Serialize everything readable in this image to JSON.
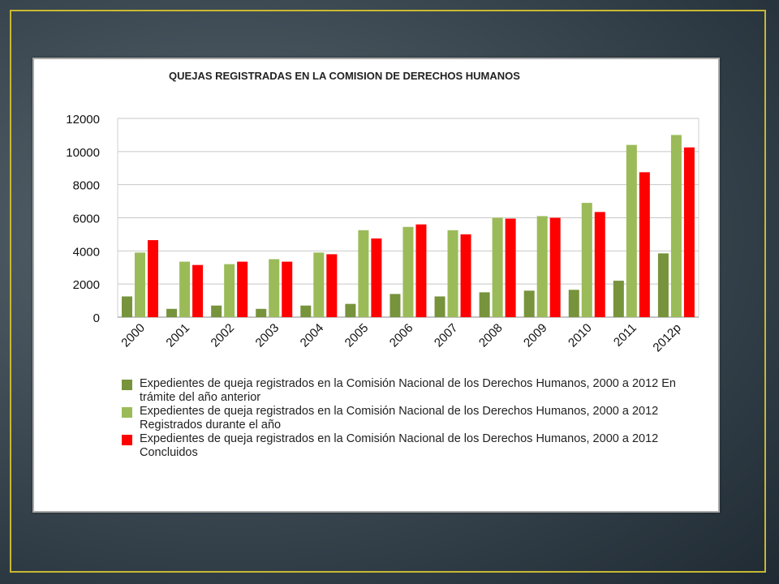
{
  "chart_data": {
    "type": "bar",
    "title": "QUEJAS REGISTRADAS EN LA COMISION DE DERECHOS HUMANOS",
    "categories": [
      "2000",
      "2001",
      "2002",
      "2003",
      "2004",
      "2005",
      "2006",
      "2007",
      "2008",
      "2009",
      "2010",
      "2011",
      "2012p"
    ],
    "ylim": [
      0,
      12000
    ],
    "yticks": [
      0,
      2000,
      4000,
      6000,
      8000,
      10000,
      12000
    ],
    "grid": true,
    "legend_position": "bottom",
    "series": [
      {
        "name": "Expedientes de queja registrados en la Comisión Nacional de los Derechos Humanos, 2000 a 2012 En trámite del año anterior",
        "color": "#77933c",
        "values": [
          1250,
          500,
          700,
          500,
          700,
          800,
          1400,
          1250,
          1500,
          1600,
          1650,
          2200,
          3850
        ]
      },
      {
        "name": "Expedientes de queja registrados en la Comisión Nacional de los Derechos Humanos, 2000 a 2012 Registrados durante el año",
        "color": "#9bbb59",
        "values": [
          3900,
          3350,
          3200,
          3500,
          3900,
          5250,
          5450,
          5250,
          6000,
          6100,
          6900,
          10400,
          11000
        ]
      },
      {
        "name": "Expedientes de queja registrados en la Comisión Nacional de los Derechos Humanos, 2000 a 2012 Concluidos",
        "color": "#ff0000",
        "values": [
          4650,
          3150,
          3350,
          3350,
          3800,
          4750,
          5600,
          5000,
          5950,
          6000,
          6350,
          8750,
          10250
        ]
      }
    ]
  }
}
